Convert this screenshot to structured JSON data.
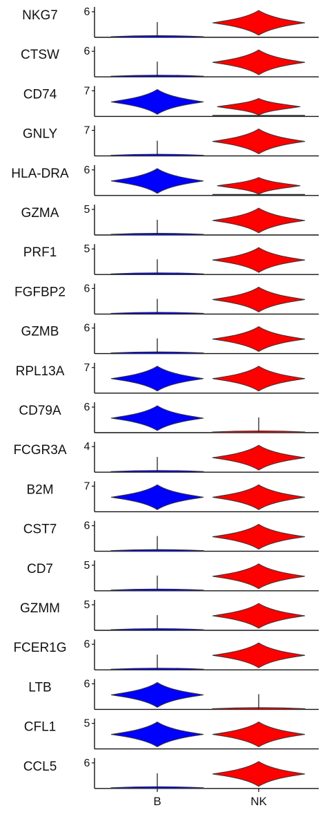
{
  "chart_data": {
    "type": "violin",
    "categories": [
      "B",
      "NK"
    ],
    "category_colors": {
      "B": "#0000ff",
      "NK": "#ff0000"
    },
    "genes": [
      {
        "name": "NKG7",
        "ytick": "6",
        "B": "low",
        "NK": "high"
      },
      {
        "name": "CTSW",
        "ytick": "6",
        "B": "low",
        "NK": "high"
      },
      {
        "name": "CD74",
        "ytick": "7",
        "B": "high",
        "NK": "mid"
      },
      {
        "name": "GNLY",
        "ytick": "7",
        "B": "low",
        "NK": "high"
      },
      {
        "name": "HLA-DRA",
        "ytick": "6",
        "B": "high",
        "NK": "mid"
      },
      {
        "name": "GZMA",
        "ytick": "5",
        "B": "low",
        "NK": "high"
      },
      {
        "name": "PRF1",
        "ytick": "5",
        "B": "low",
        "NK": "high"
      },
      {
        "name": "FGFBP2",
        "ytick": "6",
        "B": "low",
        "NK": "high"
      },
      {
        "name": "GZMB",
        "ytick": "6",
        "B": "low",
        "NK": "high"
      },
      {
        "name": "RPL13A",
        "ytick": "7",
        "B": "high",
        "NK": "high"
      },
      {
        "name": "CD79A",
        "ytick": "6",
        "B": "high",
        "NK": "low"
      },
      {
        "name": "FCGR3A",
        "ytick": "4",
        "B": "low",
        "NK": "high"
      },
      {
        "name": "B2M",
        "ytick": "7",
        "B": "high",
        "NK": "high"
      },
      {
        "name": "CST7",
        "ytick": "6",
        "B": "low",
        "NK": "high"
      },
      {
        "name": "CD7",
        "ytick": "5",
        "B": "low",
        "NK": "high"
      },
      {
        "name": "GZMM",
        "ytick": "5",
        "B": "low",
        "NK": "high"
      },
      {
        "name": "FCER1G",
        "ytick": "6",
        "B": "low",
        "NK": "high"
      },
      {
        "name": "LTB",
        "ytick": "6",
        "B": "high",
        "NK": "low"
      },
      {
        "name": "CFL1",
        "ytick": "5",
        "B": "high",
        "NK": "high"
      },
      {
        "name": "CCL5",
        "ytick": "6",
        "B": "low",
        "NK": "high"
      }
    ]
  }
}
